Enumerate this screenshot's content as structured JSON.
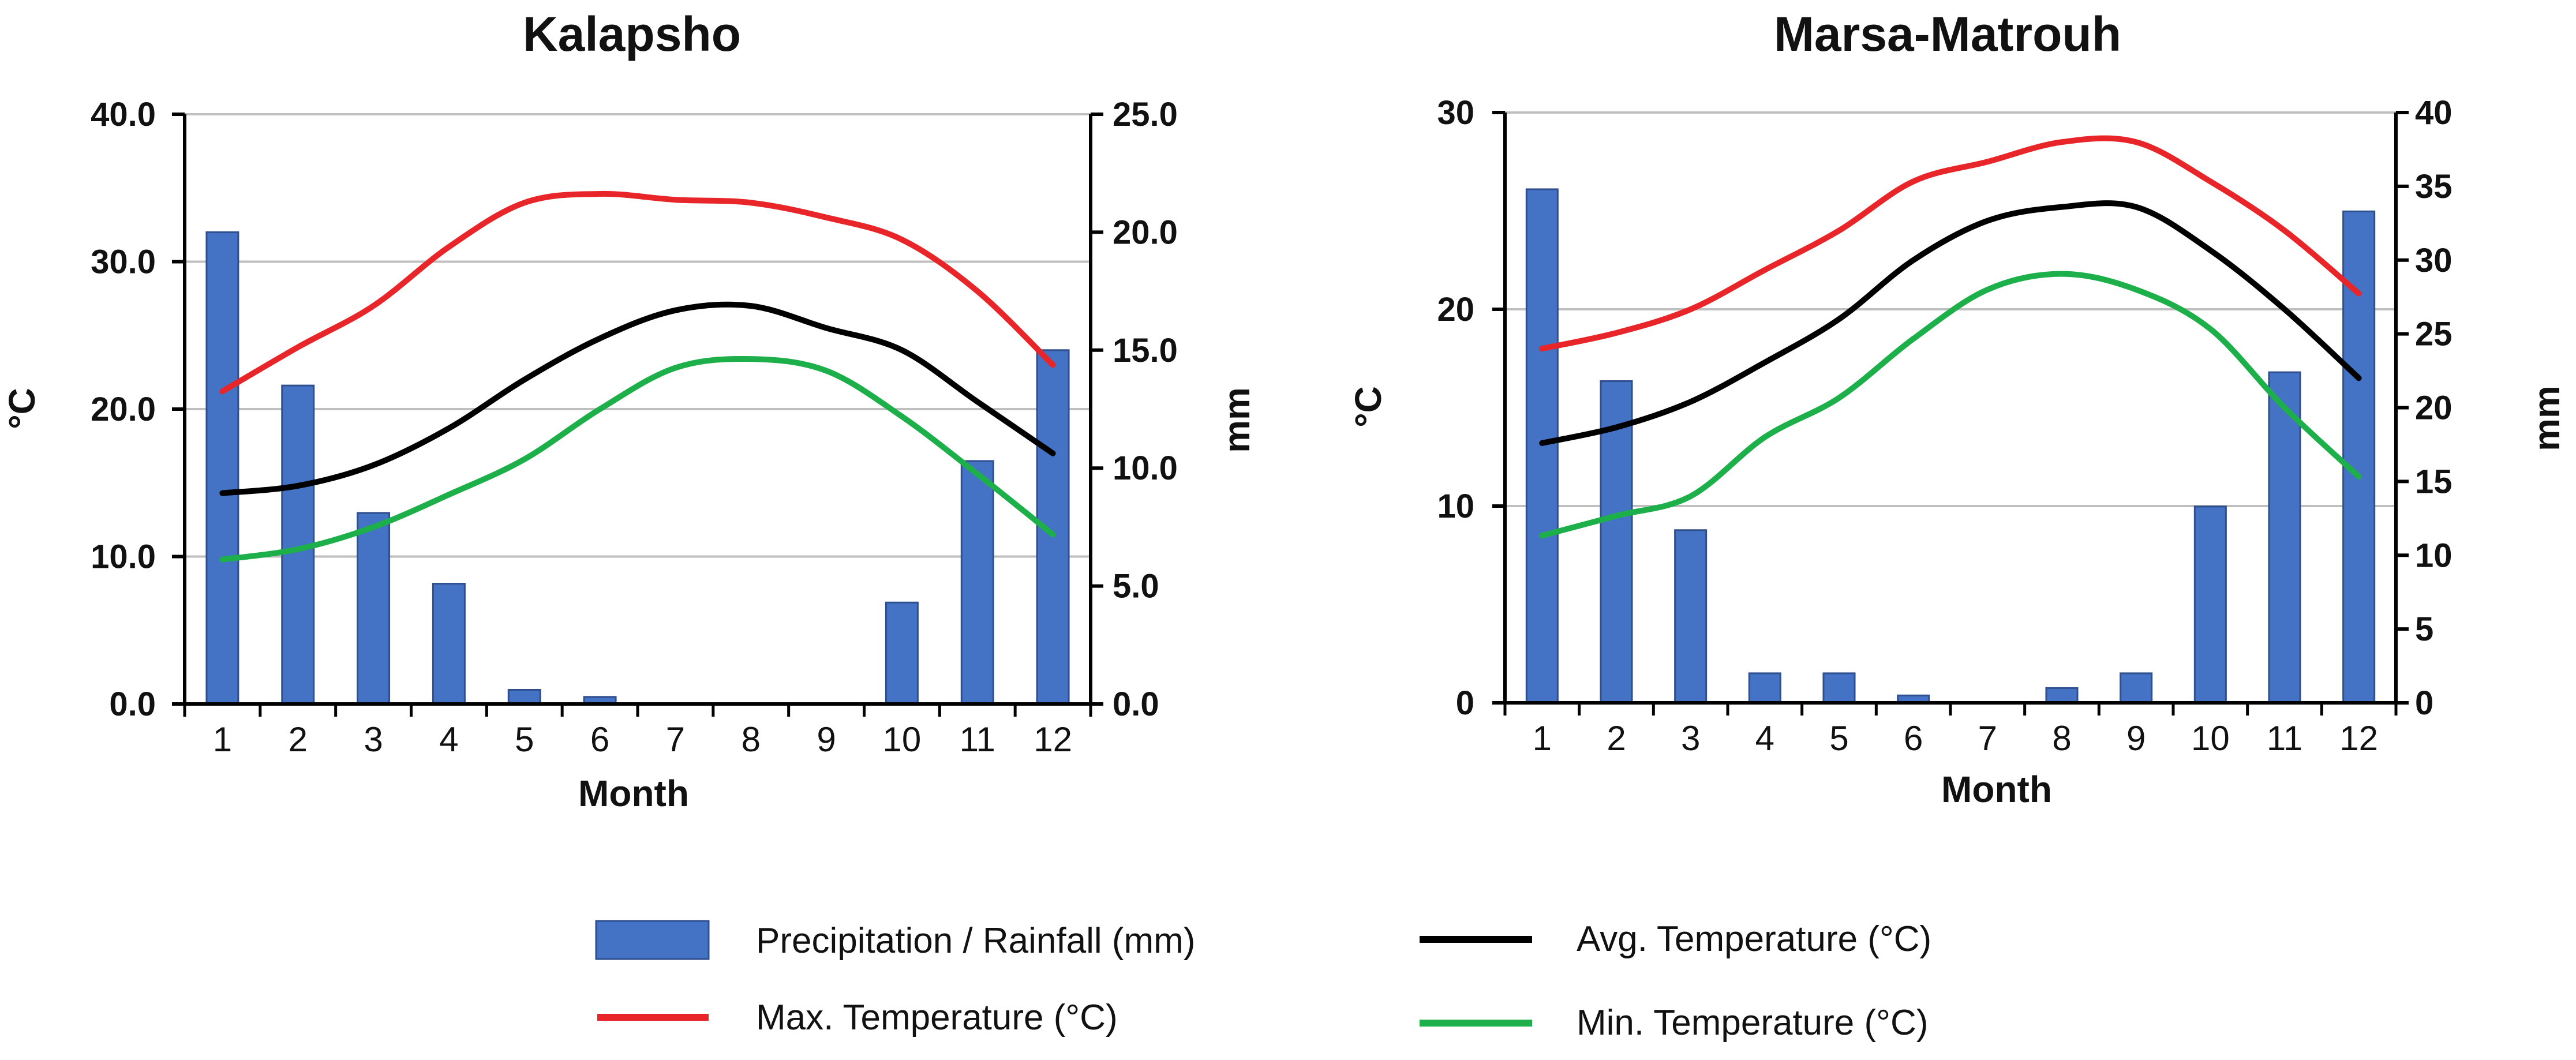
{
  "chart_data": [
    {
      "type": "bar+line",
      "title": "Kalapsho",
      "xlabel": "Month",
      "ylabel_left": "°C",
      "ylabel_right": "mm",
      "categories": [
        "1",
        "2",
        "3",
        "4",
        "5",
        "6",
        "7",
        "8",
        "9",
        "10",
        "11",
        "12"
      ],
      "ylim_left": [
        0,
        40
      ],
      "yticks_left": [
        0,
        10,
        20,
        30,
        40
      ],
      "yticks_left_labels": [
        "0.0",
        "10.0",
        "20.0",
        "30.0",
        "40.0"
      ],
      "ylim_right": [
        0,
        25
      ],
      "yticks_right": [
        0,
        5,
        10,
        15,
        20,
        25
      ],
      "yticks_right_labels": [
        "0.0",
        "5.0",
        "10.0",
        "15.0",
        "20.0",
        "25.0"
      ],
      "grid": true,
      "precipitation_mm": [
        20.0,
        13.5,
        8.1,
        5.1,
        0.6,
        0.3,
        0,
        0,
        0,
        4.3,
        10.3,
        15.0
      ],
      "max_temp": [
        21.2,
        24.2,
        27.0,
        31.0,
        34.0,
        34.6,
        34.2,
        34.0,
        33.0,
        31.5,
        28.0,
        23.0
      ],
      "avg_temp": [
        14.3,
        14.8,
        16.2,
        18.7,
        22.0,
        24.8,
        26.7,
        27.0,
        25.5,
        24.0,
        20.5,
        17.0
      ],
      "min_temp": [
        9.8,
        10.5,
        12.0,
        14.2,
        16.6,
        20.0,
        22.8,
        23.4,
        22.6,
        19.5,
        15.6,
        11.5
      ]
    },
    {
      "type": "bar+line",
      "title": "Marsa-Matrouh",
      "xlabel": "Month",
      "ylabel_left": "°C",
      "ylabel_right": "mm",
      "categories": [
        "1",
        "2",
        "3",
        "4",
        "5",
        "6",
        "7",
        "8",
        "9",
        "10",
        "11",
        "12"
      ],
      "ylim_left": [
        0,
        30
      ],
      "yticks_left": [
        0,
        10,
        20,
        30
      ],
      "yticks_left_labels": [
        "0",
        "10",
        "20",
        "30"
      ],
      "ylim_right": [
        0,
        40
      ],
      "yticks_right": [
        0,
        5,
        10,
        15,
        20,
        25,
        30,
        35,
        40
      ],
      "yticks_right_labels": [
        "0",
        "5",
        "10",
        "15",
        "20",
        "25",
        "30",
        "35",
        "40"
      ],
      "grid": true,
      "precipitation_mm": [
        34.8,
        21.8,
        11.7,
        2.0,
        2.0,
        0.5,
        0,
        1.0,
        2.0,
        13.3,
        22.4,
        33.3
      ],
      "max_temp": [
        18.0,
        18.8,
        20.0,
        22.0,
        24.0,
        26.5,
        27.5,
        28.5,
        28.5,
        26.5,
        24.0,
        20.8
      ],
      "avg_temp": [
        13.2,
        14.0,
        15.3,
        17.3,
        19.5,
        22.5,
        24.5,
        25.2,
        25.2,
        23.0,
        20.0,
        16.5
      ],
      "min_temp": [
        8.5,
        9.5,
        10.5,
        13.5,
        15.5,
        18.5,
        21.0,
        21.8,
        21.0,
        19.0,
        15.0,
        11.5
      ]
    }
  ],
  "legend": {
    "precipitation": "Precipitation / Rainfall (mm)",
    "max_temp": "Max. Temperature (°C)",
    "avg_temp": "Avg. Temperature (°C)",
    "min_temp": "Min. Temperature (°C)"
  },
  "colors": {
    "bar": "#4472C4",
    "bar_edge": "#2F4F8F",
    "max_temp": "#E8262A",
    "avg_temp": "#000000",
    "min_temp": "#1DB04A",
    "grid": "#BFBFBF",
    "axis": "#000000"
  }
}
